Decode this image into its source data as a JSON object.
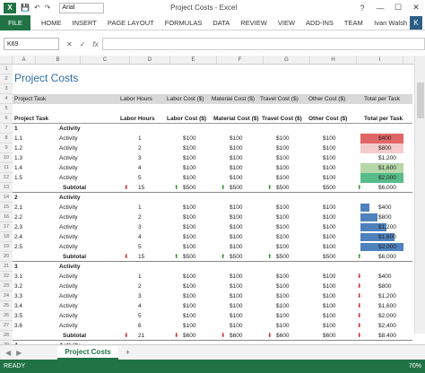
{
  "window": {
    "title": "Project Costs - Excel",
    "font": "Arial",
    "user": "Ivan Walsh",
    "avatar": "K"
  },
  "ribbon": {
    "tabs": [
      "FILE",
      "HOME",
      "INSERT",
      "PAGE LAYOUT",
      "FORMULAS",
      "DATA",
      "REVIEW",
      "VIEW",
      "ADD-INS",
      "TEAM"
    ]
  },
  "formula": {
    "namebox": "K69",
    "fx": "fx"
  },
  "columns": [
    "A",
    "B",
    "C",
    "D",
    "E",
    "F",
    "G",
    "H",
    "I"
  ],
  "sheet": {
    "title": "Project Costs",
    "header1": [
      "Project Task",
      "Labor Hours",
      "Labor Cost ($)",
      "Material Cost ($)",
      "Travel Cost ($)",
      "Other Cost ($)",
      "Total per Task"
    ],
    "header2": [
      "Project Task",
      "Labor Hours",
      "Labor Cost ($)",
      "Material Cost ($)",
      "Travel Cost ($)",
      "Other Cost ($)",
      "Total per Task"
    ],
    "rows": [
      {
        "n": "7",
        "a": "1",
        "b": "Activity",
        "bold": true
      },
      {
        "n": "8",
        "a": "1.1",
        "b": "Activity",
        "hrs": "1",
        "lab": "$100",
        "mat": "$100",
        "tra": "$100",
        "oth": "$100",
        "tot": "$400",
        "fill": "#e06666"
      },
      {
        "n": "9",
        "a": "1.2",
        "b": "Activity",
        "hrs": "2",
        "lab": "$100",
        "mat": "$100",
        "tra": "$100",
        "oth": "$100",
        "tot": "$800",
        "fill": "#f4cccc"
      },
      {
        "n": "10",
        "a": "1.3",
        "b": "Activity",
        "hrs": "3",
        "lab": "$100",
        "mat": "$100",
        "tra": "$100",
        "oth": "$100",
        "tot": "$1,200"
      },
      {
        "n": "11",
        "a": "1.4",
        "b": "Activity",
        "hrs": "4",
        "lab": "$100",
        "mat": "$100",
        "tra": "$100",
        "oth": "$100",
        "tot": "$1,600",
        "fill": "#b6d7a8"
      },
      {
        "n": "12",
        "a": "1.5",
        "b": "Activity",
        "hrs": "5",
        "lab": "$100",
        "mat": "$100",
        "tra": "$100",
        "oth": "$100",
        "tot": "$2,000",
        "fill": "#57bb8a"
      },
      {
        "n": "13",
        "b": "Subtotal",
        "sub": true,
        "hrs": "15",
        "lab": "$500",
        "mat": "$500",
        "tra": "$500",
        "oth": "$500",
        "tot": "$6,000",
        "arrows": [
          "dn",
          "up",
          "up",
          "up",
          "up"
        ]
      },
      {
        "n": "14",
        "a": "2",
        "b": "Activity",
        "bold": true
      },
      {
        "n": "15",
        "a": "2.1",
        "b": "Activity",
        "hrs": "1",
        "lab": "$100",
        "mat": "$100",
        "tra": "$100",
        "oth": "$100",
        "tot": "$400",
        "bar": 0.2
      },
      {
        "n": "16",
        "a": "2.2",
        "b": "Activity",
        "hrs": "2",
        "lab": "$100",
        "mat": "$100",
        "tra": "$100",
        "oth": "$100",
        "tot": "$800",
        "bar": 0.4
      },
      {
        "n": "17",
        "a": "2.3",
        "b": "Activity",
        "hrs": "3",
        "lab": "$100",
        "mat": "$100",
        "tra": "$100",
        "oth": "$100",
        "tot": "$1,200",
        "bar": 0.6
      },
      {
        "n": "18",
        "a": "2.4",
        "b": "Activity",
        "hrs": "4",
        "lab": "$100",
        "mat": "$100",
        "tra": "$100",
        "oth": "$100",
        "tot": "$1,600",
        "bar": 0.8
      },
      {
        "n": "19",
        "a": "2.5",
        "b": "Activity",
        "hrs": "5",
        "lab": "$100",
        "mat": "$100",
        "tra": "$100",
        "oth": "$100",
        "tot": "$2,000",
        "bar": 1.0
      },
      {
        "n": "20",
        "b": "Subtotal",
        "sub": true,
        "hrs": "15",
        "lab": "$500",
        "mat": "$500",
        "tra": "$500",
        "oth": "$500",
        "tot": "$6,000",
        "arrows": [
          "dn",
          "up",
          "up",
          "up",
          "up"
        ]
      },
      {
        "n": "21",
        "a": "3",
        "b": "Activity",
        "bold": true
      },
      {
        "n": "22",
        "a": "3.1",
        "b": "Activity",
        "hrs": "1",
        "lab": "$100",
        "mat": "$100",
        "tra": "$100",
        "oth": "$100",
        "tot": "$400",
        "arrows": [
          "",
          "",
          "",
          "",
          "dn"
        ]
      },
      {
        "n": "23",
        "a": "3.2",
        "b": "Activity",
        "hrs": "2",
        "lab": "$100",
        "mat": "$100",
        "tra": "$100",
        "oth": "$100",
        "tot": "$800",
        "arrows": [
          "",
          "",
          "",
          "",
          "dn"
        ]
      },
      {
        "n": "24",
        "a": "3.3",
        "b": "Activity",
        "hrs": "3",
        "lab": "$100",
        "mat": "$100",
        "tra": "$100",
        "oth": "$100",
        "tot": "$1,200",
        "arrows": [
          "",
          "",
          "",
          "",
          "dn"
        ]
      },
      {
        "n": "25",
        "a": "3.4",
        "b": "Activity",
        "hrs": "4",
        "lab": "$100",
        "mat": "$100",
        "tra": "$100",
        "oth": "$100",
        "tot": "$1,600",
        "arrows": [
          "",
          "",
          "",
          "",
          "dn"
        ]
      },
      {
        "n": "26",
        "a": "3.5",
        "b": "Activity",
        "hrs": "5",
        "lab": "$100",
        "mat": "$100",
        "tra": "$100",
        "oth": "$100",
        "tot": "$2,000",
        "arrows": [
          "",
          "",
          "",
          "",
          "dn"
        ]
      },
      {
        "n": "27",
        "a": "3.6",
        "b": "Activity",
        "hrs": "6",
        "lab": "$100",
        "mat": "$100",
        "tra": "$100",
        "oth": "$100",
        "tot": "$2,400",
        "arrows": [
          "",
          "",
          "",
          "",
          "dn"
        ]
      },
      {
        "n": "28",
        "b": "Subtotal",
        "sub": true,
        "hrs": "21",
        "lab": "$600",
        "mat": "$600",
        "tra": "$600",
        "oth": "$600",
        "tot": "$8,400",
        "arrows": [
          "dn",
          "dn",
          "dn",
          "dn",
          "dn"
        ]
      },
      {
        "n": "29",
        "a": "4",
        "b": "Activity",
        "bold": true
      }
    ]
  },
  "tabs": {
    "sheet": "Project Costs",
    "add": "+"
  },
  "status": {
    "ready": "READY",
    "zoom": "70%"
  }
}
